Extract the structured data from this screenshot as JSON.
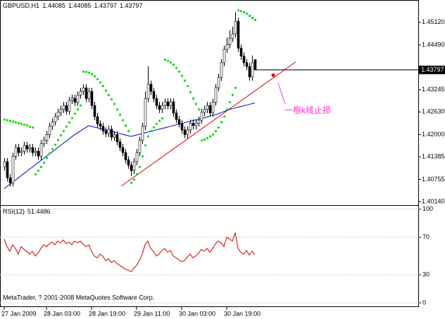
{
  "chart_data": {
    "type": "candlestick",
    "title": "GBPUSD,H1",
    "open": [
      1.411,
      1.4125,
      1.408,
      1.4066,
      1.414,
      1.4164,
      1.415,
      1.4154,
      1.417,
      1.416,
      1.4164,
      1.415,
      1.4154,
      1.414,
      1.4175,
      1.4184,
      1.42,
      1.4223,
      1.4235,
      1.425,
      1.4262,
      1.427,
      1.4281,
      1.4265,
      1.4295,
      1.4301,
      1.429,
      1.431,
      1.432,
      1.433,
      1.43,
      1.432,
      1.4281,
      1.425,
      1.423,
      1.4223,
      1.421,
      1.4203,
      1.4215,
      1.4193,
      1.42,
      1.418,
      1.4164,
      1.415,
      1.413,
      1.4115,
      1.41,
      1.4125,
      1.415,
      1.4184,
      1.4223,
      1.43,
      1.434,
      1.432,
      1.43,
      1.4281,
      1.427,
      1.4281,
      1.4291,
      1.428,
      1.4291,
      1.426,
      1.4242,
      1.423,
      1.4213,
      1.42,
      1.4213,
      1.4232,
      1.4225,
      1.4232,
      1.424,
      1.4262,
      1.427,
      1.4281,
      1.426,
      1.429,
      1.433,
      1.4359,
      1.44,
      1.4437,
      1.445,
      1.4467,
      1.448,
      1.4515,
      1.444,
      1.4418,
      1.44,
      1.4389,
      1.436,
      1.44085
    ],
    "high": [
      1.4135,
      1.4135,
      1.409,
      1.415,
      1.4174,
      1.4174,
      1.4164,
      1.418,
      1.418,
      1.4174,
      1.4174,
      1.4164,
      1.4164,
      1.4185,
      1.4194,
      1.421,
      1.4233,
      1.4245,
      1.426,
      1.4272,
      1.428,
      1.4291,
      1.4291,
      1.4305,
      1.4311,
      1.4311,
      1.432,
      1.433,
      1.434,
      1.434,
      1.433,
      1.433,
      1.4291,
      1.426,
      1.424,
      1.4233,
      1.422,
      1.4225,
      1.4225,
      1.421,
      1.421,
      1.419,
      1.4174,
      1.416,
      1.414,
      1.4125,
      1.4135,
      1.416,
      1.4194,
      1.4233,
      1.432,
      1.439,
      1.435,
      1.433,
      1.431,
      1.4291,
      1.4291,
      1.4301,
      1.4301,
      1.4301,
      1.4301,
      1.427,
      1.4252,
      1.424,
      1.4223,
      1.4223,
      1.4242,
      1.4242,
      1.4242,
      1.425,
      1.4272,
      1.428,
      1.4291,
      1.4291,
      1.43,
      1.434,
      1.4369,
      1.441,
      1.4447,
      1.447,
      1.449,
      1.45,
      1.454,
      1.4525,
      1.445,
      1.4428,
      1.441,
      1.4399,
      1.442,
      1.44085
    ],
    "low": [
      1.41,
      1.407,
      1.4056,
      1.4056,
      1.413,
      1.414,
      1.414,
      1.4144,
      1.415,
      1.415,
      1.414,
      1.414,
      1.413,
      1.413,
      1.4165,
      1.4174,
      1.419,
      1.4213,
      1.4225,
      1.424,
      1.4252,
      1.426,
      1.4255,
      1.4255,
      1.4285,
      1.428,
      1.428,
      1.43,
      1.431,
      1.429,
      1.429,
      1.4271,
      1.424,
      1.422,
      1.4213,
      1.42,
      1.4193,
      1.4193,
      1.4183,
      1.4183,
      1.417,
      1.4154,
      1.414,
      1.412,
      1.4105,
      1.4085,
      1.409,
      1.4115,
      1.414,
      1.4174,
      1.4213,
      1.429,
      1.431,
      1.429,
      1.4271,
      1.426,
      1.426,
      1.4271,
      1.427,
      1.427,
      1.425,
      1.4232,
      1.422,
      1.4203,
      1.419,
      1.419,
      1.4203,
      1.4215,
      1.4215,
      1.4222,
      1.423,
      1.4252,
      1.426,
      1.425,
      1.425,
      1.428,
      1.432,
      1.4349,
      1.439,
      1.4427,
      1.444,
      1.4457,
      1.447,
      1.443,
      1.4408,
      1.439,
      1.4379,
      1.435,
      1.435,
      1.43797
    ],
    "close": [
      1.4125,
      1.408,
      1.4066,
      1.414,
      1.4164,
      1.415,
      1.4154,
      1.417,
      1.416,
      1.4164,
      1.415,
      1.4154,
      1.414,
      1.4175,
      1.4184,
      1.42,
      1.4223,
      1.4235,
      1.425,
      1.4262,
      1.427,
      1.4281,
      1.4265,
      1.4295,
      1.4301,
      1.429,
      1.431,
      1.432,
      1.433,
      1.43,
      1.432,
      1.4281,
      1.425,
      1.423,
      1.4223,
      1.421,
      1.4203,
      1.4215,
      1.4193,
      1.42,
      1.418,
      1.4164,
      1.415,
      1.413,
      1.4115,
      1.41,
      1.4125,
      1.415,
      1.4184,
      1.4223,
      1.43,
      1.434,
      1.432,
      1.43,
      1.4281,
      1.427,
      1.4281,
      1.4291,
      1.428,
      1.4291,
      1.426,
      1.4242,
      1.423,
      1.4213,
      1.42,
      1.4213,
      1.4232,
      1.4225,
      1.4232,
      1.424,
      1.4262,
      1.427,
      1.4281,
      1.426,
      1.429,
      1.433,
      1.4359,
      1.44,
      1.4437,
      1.445,
      1.4467,
      1.448,
      1.4515,
      1.444,
      1.4418,
      1.44,
      1.4389,
      1.436,
      1.44,
      1.43797
    ],
    "sar": {
      "color": "#00e000",
      "values": [
        1.4242,
        1.424,
        1.4238,
        1.4236,
        1.4234,
        1.4232,
        1.423,
        1.4228,
        1.4226,
        1.4222,
        1.422,
        1.409,
        1.41,
        1.411,
        1.4122,
        1.4135,
        1.4148,
        1.416,
        1.4172,
        1.4185,
        1.4198,
        1.421,
        1.4222,
        1.4234,
        1.4246,
        1.4258,
        1.427,
        1.4281,
        1.4375,
        1.4374,
        1.4372,
        1.4368,
        1.4362,
        1.4354,
        1.4345,
        1.4335,
        1.4322,
        1.431,
        1.4298,
        1.4285,
        1.427,
        1.4255,
        1.424,
        1.4225,
        1.421,
        1.4066,
        1.4075,
        1.409,
        1.411,
        1.414,
        1.417,
        1.4195,
        1.421,
        1.422,
        1.423,
        1.4238,
        1.4245,
        1.4408,
        1.4405,
        1.44,
        1.4394,
        1.4385,
        1.4375,
        1.4363,
        1.435,
        1.4335,
        1.4318,
        1.43,
        1.4285,
        1.427,
        1.4184,
        1.4186,
        1.419,
        1.4195,
        1.42,
        1.421,
        1.422,
        1.4235,
        1.425,
        1.427,
        1.429,
        1.431,
        1.433,
        1.4545,
        1.4543,
        1.454,
        1.4536,
        1.453,
        1.4524,
        1.4518
      ]
    },
    "ma": {
      "color": "#0000cc",
      "values": [
        1.405,
        1.4056,
        1.4062,
        1.4068,
        1.4074,
        1.408,
        1.4086,
        1.4092,
        1.4098,
        1.4104,
        1.411,
        1.4116,
        1.4122,
        1.4128,
        1.4134,
        1.414,
        1.4146,
        1.4152,
        1.4158,
        1.4164,
        1.417,
        1.4176,
        1.4182,
        1.4188,
        1.4194,
        1.42,
        1.4205,
        1.421,
        1.4215,
        1.422,
        1.4225,
        1.4223,
        1.4221,
        1.4219,
        1.4217,
        1.4215,
        1.4213,
        1.4211,
        1.4209,
        1.4207,
        1.4205,
        1.4203,
        1.4201,
        1.4199,
        1.4197,
        1.4195,
        1.4197,
        1.4199,
        1.4201,
        1.4203,
        1.4205,
        1.4207,
        1.4209,
        1.4211,
        1.4213,
        1.4215,
        1.4217,
        1.4219,
        1.4221,
        1.4223,
        1.4225,
        1.4227,
        1.4229,
        1.4231,
        1.4233,
        1.4235,
        1.4237,
        1.4239,
        1.4241,
        1.4243,
        1.4245,
        1.4247,
        1.4249,
        1.4251,
        1.4253,
        1.4255,
        1.4258,
        1.4261,
        1.4264,
        1.4267,
        1.427,
        1.4272,
        1.4274,
        1.4276,
        1.4278,
        1.428,
        1.4282,
        1.4284,
        1.4286,
        1.4288
      ]
    },
    "categories": [
      "27 Jan 2009",
      null,
      null,
      null,
      null,
      null,
      null,
      null,
      null,
      null,
      null,
      null,
      null,
      null,
      null,
      "28 Jan 03:00",
      null,
      null,
      null,
      null,
      null,
      null,
      null,
      null,
      null,
      null,
      null,
      null,
      null,
      null,
      null,
      "28 Jan 19:00",
      null,
      null,
      null,
      null,
      null,
      null,
      null,
      null,
      null,
      null,
      null,
      null,
      null,
      null,
      null,
      "29 Jan 11:00",
      null,
      null,
      null,
      null,
      null,
      null,
      null,
      null,
      null,
      null,
      null,
      null,
      null,
      null,
      null,
      "30 Jan 03:00",
      null,
      null,
      null,
      null,
      null,
      null,
      null,
      null,
      null,
      null,
      null,
      null,
      null,
      null,
      null,
      "30 Jan 19:00",
      null,
      null,
      null,
      null,
      null,
      null,
      null,
      null,
      null,
      null
    ],
    "ylim": [
      1.4006,
      1.457
    ],
    "yticks": [
      {
        "value": 1.4512,
        "label": "1.45120"
      },
      {
        "value": 1.4449,
        "label": "1.44490"
      },
      1.43245,
      {
        "value": 1.4263,
        "label": "1.42630"
      },
      {
        "value": 1.42,
        "label": "1.42000"
      },
      1.41385,
      1.40755,
      {
        "value": 1.4014,
        "label": "1.40140"
      }
    ],
    "annotation": "一根k线止损",
    "footer": "MetaTrader, ? 2001-2008 MetaQuotes Software Corp.",
    "indicator": {
      "type": "line",
      "title": "RSI(12)",
      "color": "#cc0000",
      "ylim": [
        -4.5,
        103.5
      ],
      "yticks": [
        100,
        70,
        30,
        0
      ],
      "values": [
        68,
        60,
        55,
        62,
        58,
        52,
        60,
        57,
        55,
        52,
        55,
        50,
        53,
        58,
        62,
        60,
        63,
        65,
        62,
        66,
        64,
        67,
        63,
        65,
        62,
        66,
        64,
        66,
        63,
        60,
        62,
        55,
        50,
        48,
        52,
        50,
        45,
        47,
        43,
        45,
        42,
        40,
        38,
        36,
        35,
        33,
        37,
        40,
        45,
        52,
        62,
        66,
        58,
        55,
        50,
        52,
        56,
        58,
        54,
        56,
        50,
        48,
        46,
        44,
        45,
        49,
        52,
        48,
        50,
        53,
        57,
        55,
        58,
        54,
        58,
        63,
        66,
        64,
        60,
        70,
        68,
        66,
        75,
        58,
        54,
        52,
        56,
        51,
        55,
        51.4486
      ]
    }
  }
}
